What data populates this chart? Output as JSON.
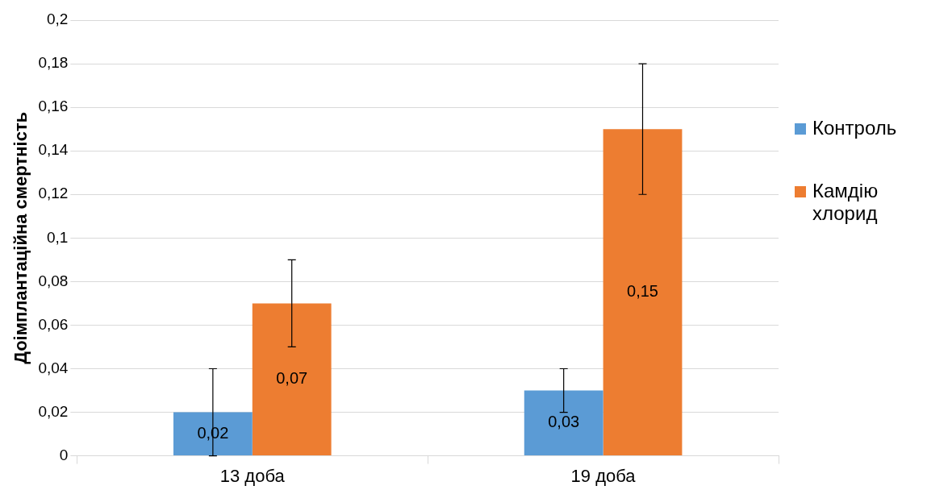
{
  "chart_data": {
    "type": "bar",
    "ylabel": "Доімплантаційна смертність",
    "categories": [
      "13 доба",
      "19 доба"
    ],
    "series": [
      {
        "name": "Контроль",
        "color": "#5b9bd5",
        "values": [
          0.02,
          0.03
        ],
        "errors": [
          0.02,
          0.01
        ],
        "value_labels": [
          "0,02",
          "0,03"
        ]
      },
      {
        "name": "Камдію хлорид",
        "color": "#ed7d31",
        "values": [
          0.07,
          0.15
        ],
        "errors": [
          0.02,
          0.03
        ],
        "value_labels": [
          "0,07",
          "0,15"
        ]
      }
    ],
    "ylim": [
      0,
      0.2
    ],
    "yticks": [
      {
        "value": 0,
        "label": "0"
      },
      {
        "value": 0.02,
        "label": "0,02"
      },
      {
        "value": 0.04,
        "label": "0,04"
      },
      {
        "value": 0.06,
        "label": "0,06"
      },
      {
        "value": 0.08,
        "label": "0,08"
      },
      {
        "value": 0.1,
        "label": "0,1"
      },
      {
        "value": 0.12,
        "label": "0,12"
      },
      {
        "value": 0.14,
        "label": "0,14"
      },
      {
        "value": 0.16,
        "label": "0,16"
      },
      {
        "value": 0.18,
        "label": "0,18"
      },
      {
        "value": 0.2,
        "label": "0,2"
      }
    ],
    "grid": "y",
    "legend": "right"
  }
}
